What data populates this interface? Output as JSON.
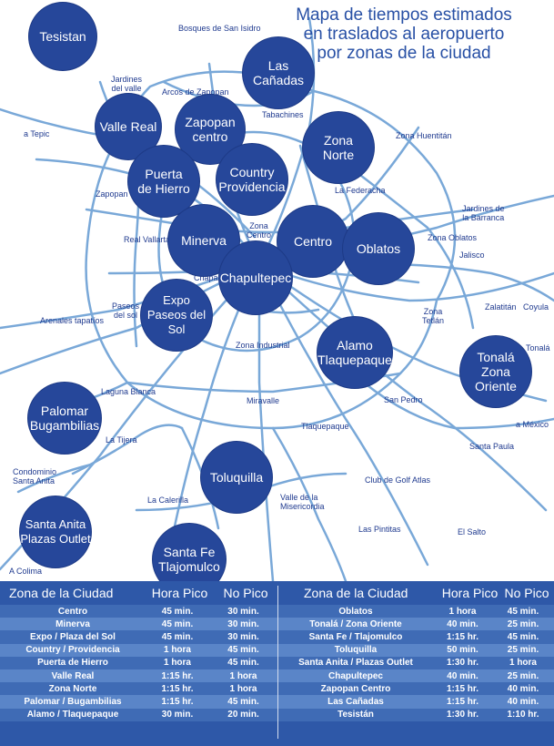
{
  "title": "Mapa de tiempos estimados\nen traslados al aeropuerto\npor zonas de la ciudad",
  "colors": {
    "zone_fill": "#26479a",
    "road": "#79a8d8",
    "label": "#1f3a8f",
    "table_bg": "#2e58a8",
    "row_light": "#5a85c8",
    "row_dark": "#3f6bb5"
  },
  "zones": [
    {
      "id": "tesistan",
      "label": "Tesistan"
    },
    {
      "id": "las-canadas",
      "label": "Las\nCañadas"
    },
    {
      "id": "valle-real",
      "label": "Valle Real"
    },
    {
      "id": "zapopan-centro",
      "label": "Zapopan\ncentro"
    },
    {
      "id": "zona-norte",
      "label": "Zona\nNorte"
    },
    {
      "id": "puerta-de-hierro",
      "label": "Puerta\nde Hierro"
    },
    {
      "id": "country-providencia",
      "label": "Country\nProvidencia"
    },
    {
      "id": "minerva",
      "label": "Minerva"
    },
    {
      "id": "centro",
      "label": "Centro"
    },
    {
      "id": "oblatos",
      "label": "Oblatos"
    },
    {
      "id": "chapultepec",
      "label": "Chapultepec"
    },
    {
      "id": "expo-paseos",
      "label": "Expo\nPaseos del\nSol"
    },
    {
      "id": "alamo",
      "label": "Alamo\nTlaquepaque"
    },
    {
      "id": "tonala",
      "label": "Tonalá\nZona\nOriente"
    },
    {
      "id": "palomar",
      "label": "Palomar\nBugambilias"
    },
    {
      "id": "toluquilla",
      "label": "Toluquilla"
    },
    {
      "id": "santa-anita",
      "label": "Santa Anita\nPlazas Outlet"
    },
    {
      "id": "santa-fe",
      "label": "Santa Fe\nTlajomulco"
    }
  ],
  "places": [
    {
      "id": "bosques",
      "label": "Bosques de San Isidro"
    },
    {
      "id": "jardines-valle",
      "label": "Jardines\ndel valle"
    },
    {
      "id": "arcos",
      "label": "Arcos de Zapopan"
    },
    {
      "id": "tabachines",
      "label": "Tabachines"
    },
    {
      "id": "a-tepic",
      "label": "a Tepic"
    },
    {
      "id": "zona-huentitan",
      "label": "Zona Huentitán"
    },
    {
      "id": "la-federacha",
      "label": "La Federacha"
    },
    {
      "id": "zapopan",
      "label": "Zapopan"
    },
    {
      "id": "jardines-barranca",
      "label": "Jardines de\nla Barranca"
    },
    {
      "id": "zona-centro",
      "label": "Zona\nCentro"
    },
    {
      "id": "real-vallarta",
      "label": "Real Vallarta"
    },
    {
      "id": "zona-oblatos",
      "label": "Zona Oblatos"
    },
    {
      "id": "jalisco",
      "label": "Jalisco"
    },
    {
      "id": "chapalita",
      "label": "Chapalita"
    },
    {
      "id": "paseos-sol",
      "label": "Paseos\ndel sol"
    },
    {
      "id": "zalatitan",
      "label": "Zalatitán"
    },
    {
      "id": "coyula",
      "label": "Coyula"
    },
    {
      "id": "arenales",
      "label": "Arenales tapatíos"
    },
    {
      "id": "zona-tetlan",
      "label": "Zona\nTetlán"
    },
    {
      "id": "tonala-place",
      "label": "Tonalá"
    },
    {
      "id": "zona-industrial",
      "label": "Zona Industrial"
    },
    {
      "id": "laguna-blanca",
      "label": "Laguna Blanca"
    },
    {
      "id": "miravalle",
      "label": "Miravalle"
    },
    {
      "id": "san-pedro",
      "label": "San Pedro"
    },
    {
      "id": "a-mexico",
      "label": "a México"
    },
    {
      "id": "tlaquepaque",
      "label": "Tlaquepaque"
    },
    {
      "id": "la-tijera",
      "label": "La Tijera"
    },
    {
      "id": "santa-paula",
      "label": "Santa Paula"
    },
    {
      "id": "condominio",
      "label": "Condominio\nSanta Anita"
    },
    {
      "id": "club-golf",
      "label": "Club de Golf Atlas"
    },
    {
      "id": "la-calerilla",
      "label": "La Calerilla"
    },
    {
      "id": "valle-misericordia",
      "label": "Valle de la\nMisericordia"
    },
    {
      "id": "las-pintitas",
      "label": "Las Pintitas"
    },
    {
      "id": "el-salto",
      "label": "El Salto"
    },
    {
      "id": "a-colima",
      "label": "A Colima"
    }
  ],
  "table": {
    "headers": {
      "zone": "Zona de la Ciudad",
      "peak": "Hora Pico",
      "offpeak": "No Pico"
    },
    "left_rows": [
      {
        "zone": "Centro",
        "peak": "45 min.",
        "offpeak": "30 min."
      },
      {
        "zone": "Minerva",
        "peak": "45 min.",
        "offpeak": "30 min."
      },
      {
        "zone": "Expo / Plaza del Sol",
        "peak": "45 min.",
        "offpeak": "30 min."
      },
      {
        "zone": "Country / Providencia",
        "peak": "1 hora",
        "offpeak": "45 min."
      },
      {
        "zone": "Puerta de Hierro",
        "peak": "1 hora",
        "offpeak": "45 min."
      },
      {
        "zone": "Valle Real",
        "peak": "1:15 hr.",
        "offpeak": "1 hora"
      },
      {
        "zone": "Zona Norte",
        "peak": "1:15 hr.",
        "offpeak": "1 hora"
      },
      {
        "zone": "Palomar / Bugambilias",
        "peak": "1:15 hr.",
        "offpeak": "45 min."
      },
      {
        "zone": "Alamo / Tlaquepaque",
        "peak": "30 min.",
        "offpeak": "20 min."
      }
    ],
    "right_rows": [
      {
        "zone": "Oblatos",
        "peak": "1 hora",
        "offpeak": "45 min."
      },
      {
        "zone": "Tonalá / Zona Oriente",
        "peak": "40 min.",
        "offpeak": "25 min."
      },
      {
        "zone": "Santa Fe / Tlajomulco",
        "peak": "1:15 hr.",
        "offpeak": "45 min."
      },
      {
        "zone": "Toluquilla",
        "peak": "50 min.",
        "offpeak": "25 min."
      },
      {
        "zone": "Santa Anita / Plazas Outlet",
        "peak": "1:30 hr.",
        "offpeak": "1 hora"
      },
      {
        "zone": "Chapultepec",
        "peak": "40 min.",
        "offpeak": "25 min."
      },
      {
        "zone": "Zapopan Centro",
        "peak": "1:15 hr.",
        "offpeak": "40 min."
      },
      {
        "zone": "Las Cañadas",
        "peak": "1:15 hr.",
        "offpeak": "40 min."
      },
      {
        "zone": "Tesistán",
        "peak": "1:30 hr.",
        "offpeak": "1:10 hr."
      }
    ]
  }
}
